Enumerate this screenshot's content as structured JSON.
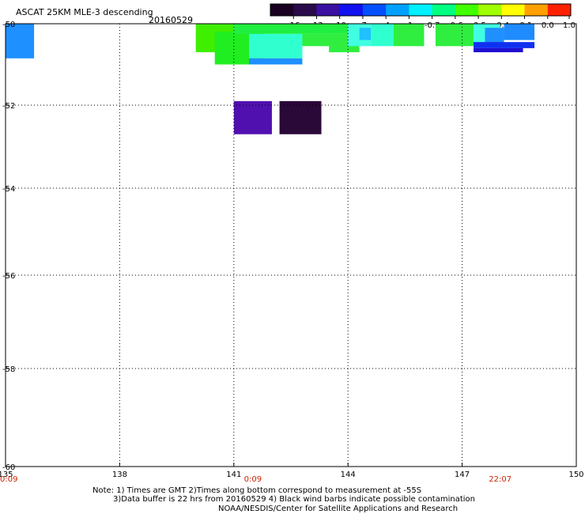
{
  "header": {
    "title": "ASCAT 25KM MLE-3 descending",
    "date": "20160529"
  },
  "colorbar": {
    "tick_labels": [
      "-16",
      "-13",
      "-10",
      "-7",
      "-4",
      "-1",
      "-0.7",
      "-0.6",
      "-0.5",
      "-0.4",
      "-0.1",
      "0.0",
      "1.0"
    ],
    "colors": [
      "#1a0020",
      "#2a0a4a",
      "#3a10a0",
      "#1010f0",
      "#0050ff",
      "#00a0ff",
      "#00f0ff",
      "#00ff80",
      "#40ff00",
      "#a0ff00",
      "#ffff00",
      "#ffa000",
      "#ff2000"
    ]
  },
  "map": {
    "lon_ticks": [
      "135",
      "138",
      "141",
      "144",
      "147",
      "150"
    ],
    "lat_ticks": [
      "-50",
      "-52",
      "-54",
      "-56",
      "-58",
      "-60"
    ],
    "time_labels": [
      {
        "lon": 135,
        "text": "0:09"
      },
      {
        "lon": 141.5,
        "text": "0:09"
      },
      {
        "lon": 148,
        "text": "22:07"
      }
    ],
    "cells": [
      {
        "lon0": 135.0,
        "lon1": 135.75,
        "lat0": -50.0,
        "lat1": -50.85,
        "value": -4.0,
        "color": "#1e90ff"
      },
      {
        "lon0": 140.0,
        "lon1": 141.0,
        "lat0": -50.0,
        "lat1": -50.7,
        "value": -0.55,
        "color": "#40ee00"
      },
      {
        "lon0": 140.5,
        "lon1": 141.8,
        "lat0": -50.2,
        "lat1": -51.0,
        "value": -0.55,
        "color": "#20ee20"
      },
      {
        "lon0": 141.0,
        "lon1": 144.0,
        "lat0": -50.0,
        "lat1": -50.25,
        "value": -0.6,
        "color": "#20ee40"
      },
      {
        "lon0": 141.4,
        "lon1": 142.8,
        "lat0": -50.25,
        "lat1": -50.85,
        "value": -0.8,
        "color": "#30ffd0"
      },
      {
        "lon0": 141.4,
        "lon1": 142.8,
        "lat0": -50.85,
        "lat1": -51.0,
        "value": -4.0,
        "color": "#1e90ff"
      },
      {
        "lon0": 142.8,
        "lon1": 144.0,
        "lat0": -50.25,
        "lat1": -50.55,
        "value": -0.6,
        "color": "#30ee40"
      },
      {
        "lon0": 143.5,
        "lon1": 144.3,
        "lat0": -50.5,
        "lat1": -50.7,
        "value": -0.6,
        "color": "#30ee40"
      },
      {
        "lon0": 144.0,
        "lon1": 144.6,
        "lat0": -50.0,
        "lat1": -50.55,
        "value": -1.0,
        "color": "#40ffe0"
      },
      {
        "lon0": 144.3,
        "lon1": 144.8,
        "lat0": -50.1,
        "lat1": -50.4,
        "value": -4.0,
        "color": "#20c0ff"
      },
      {
        "lon0": 144.6,
        "lon1": 145.2,
        "lat0": -50.0,
        "lat1": -50.55,
        "value": -1.0,
        "color": "#30ffd0"
      },
      {
        "lon0": 145.2,
        "lon1": 146.0,
        "lat0": -50.0,
        "lat1": -50.55,
        "value": -0.6,
        "color": "#30ee40"
      },
      {
        "lon0": 146.3,
        "lon1": 147.3,
        "lat0": -50.0,
        "lat1": -50.55,
        "value": -0.6,
        "color": "#30ee40"
      },
      {
        "lon0": 147.3,
        "lon1": 148.0,
        "lat0": -50.0,
        "lat1": -50.55,
        "value": -1.0,
        "color": "#40ffe0"
      },
      {
        "lon0": 147.6,
        "lon1": 148.1,
        "lat0": -50.1,
        "lat1": -50.55,
        "value": -4.0,
        "color": "#2090ff"
      },
      {
        "lon0": 148.1,
        "lon1": 148.9,
        "lat0": -50.0,
        "lat1": -50.4,
        "value": -4.0,
        "color": "#1e8cff"
      },
      {
        "lon0": 147.3,
        "lon1": 148.9,
        "lat0": -50.45,
        "lat1": -50.6,
        "value": -7.0,
        "color": "#1030f0"
      },
      {
        "lon0": 147.3,
        "lon1": 148.6,
        "lat0": -50.6,
        "lat1": -50.7,
        "value": -10.0,
        "color": "#2010d0"
      },
      {
        "lon0": 141.0,
        "lon1": 142.0,
        "lat0": -51.9,
        "lat1": -52.7,
        "value": -10.0,
        "color": "#5010b0"
      },
      {
        "lon0": 142.2,
        "lon1": 143.3,
        "lat0": -51.9,
        "lat1": -52.7,
        "value": -16.0,
        "color": "#2a0838"
      }
    ]
  },
  "notes": [
    "Note: 1) Times are GMT 2)Times along bottom correspond to measurement at -55S",
    "3)Data buffer is 22 hrs from 20160529 4) Black wind barbs indicate possible contamination",
    "NOAA/NESDIS/Center for Satellite Applications and Research"
  ]
}
